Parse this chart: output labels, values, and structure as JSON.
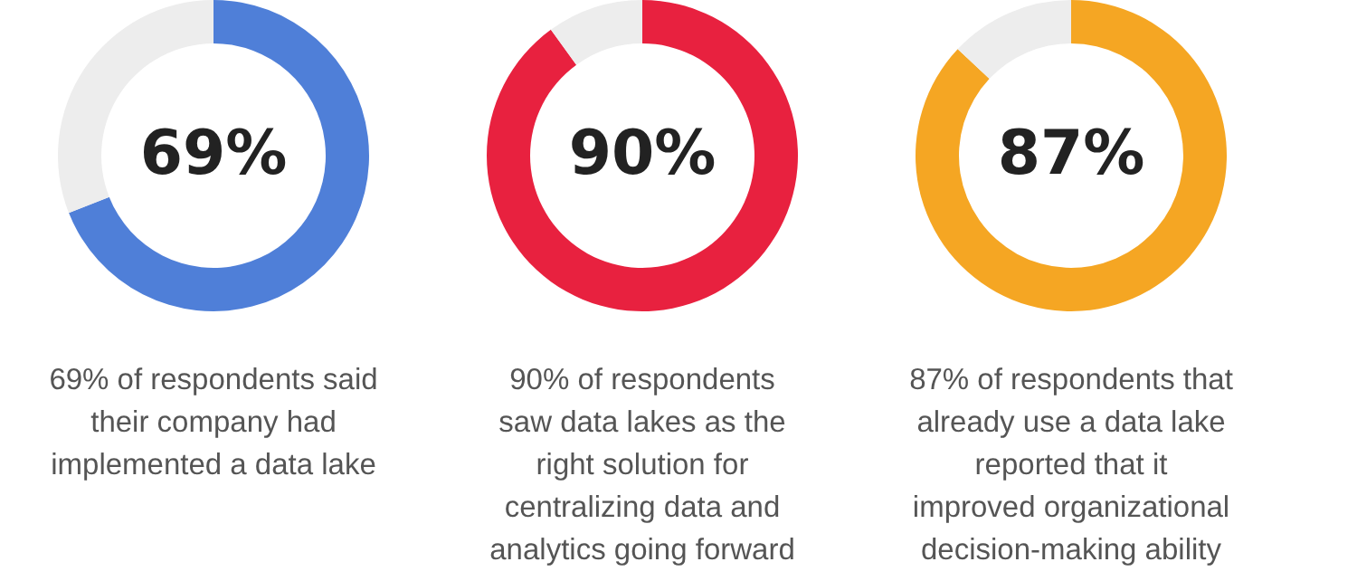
{
  "chart_data": [
    {
      "type": "donut",
      "categories": [
        null,
        null
      ],
      "values": [
        69,
        31
      ],
      "colors": [
        "#4f7fd8",
        "#ededed"
      ],
      "value_labels": [
        "69%",
        null
      ],
      "annotations": [
        "69% of respondents said\ntheir company had\nimplemented a data lake"
      ]
    },
    {
      "type": "donut",
      "categories": [
        null,
        null
      ],
      "values": [
        90,
        10
      ],
      "colors": [
        "#e8213f",
        "#ededed"
      ],
      "value_labels": [
        "90%",
        null
      ],
      "annotations": [
        "90% of respondents\nsaw data lakes as the\nright solution for\ncentralizing data and\nanalytics going forward"
      ]
    },
    {
      "type": "donut",
      "categories": [
        null,
        null
      ],
      "values": [
        87,
        13
      ],
      "colors": [
        "#f5a623",
        "#ededed"
      ],
      "value_labels": [
        "87%",
        null
      ],
      "annotations": [
        "87% of respondents that\nalready use a data lake\nreported that it\nimproved organizational\ndecision-making ability"
      ]
    }
  ]
}
